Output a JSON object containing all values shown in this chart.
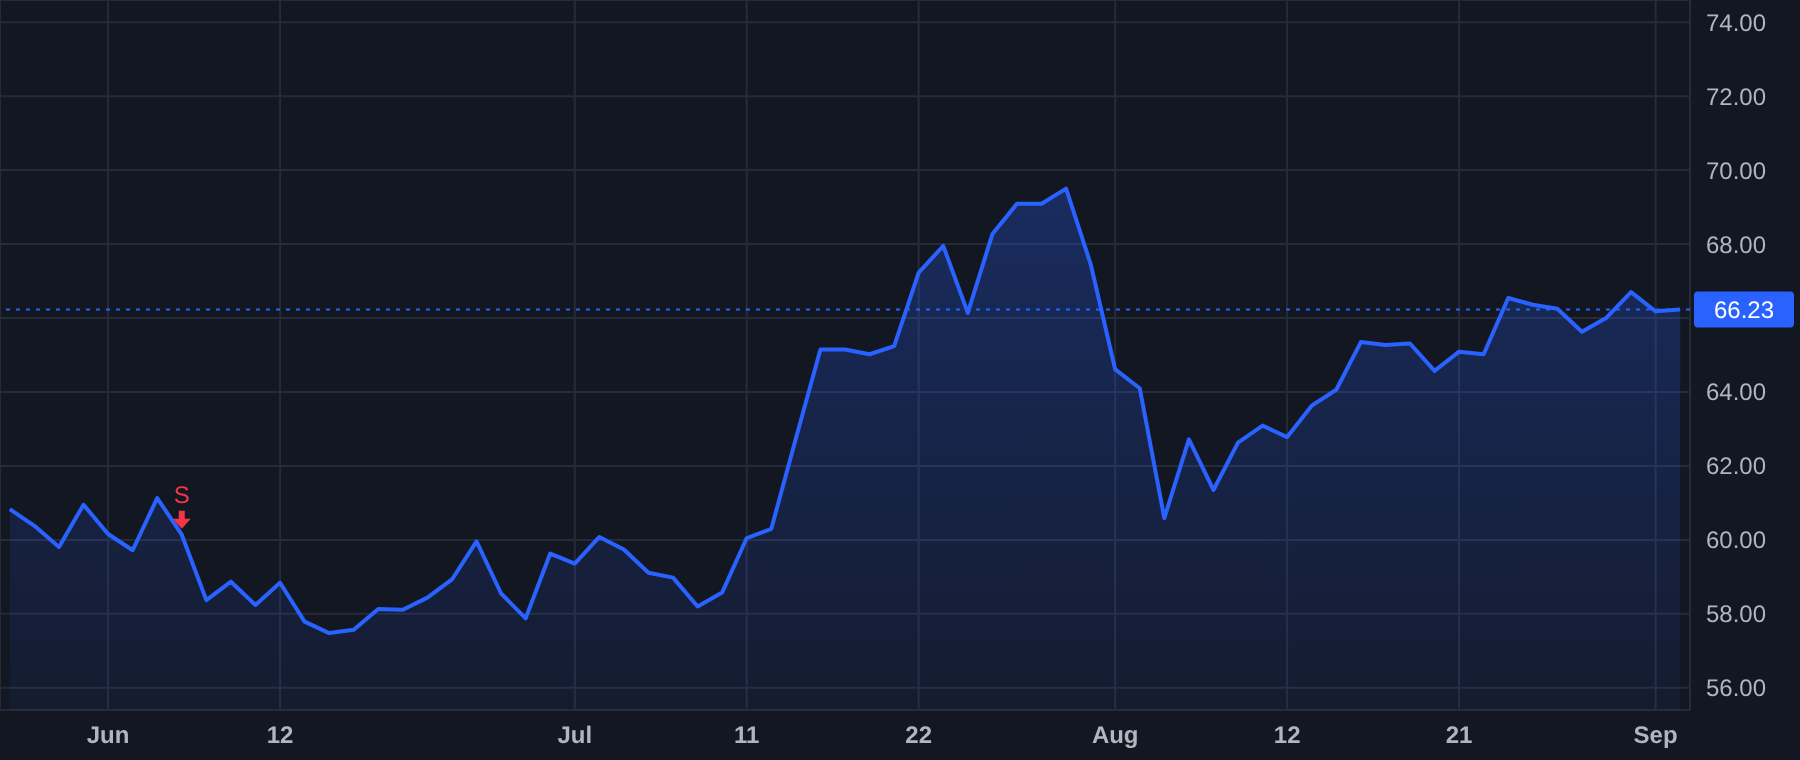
{
  "chart_data": {
    "type": "area",
    "categories": [
      null,
      null,
      null,
      null,
      "Jun",
      null,
      null,
      null,
      null,
      null,
      null,
      "12",
      null,
      null,
      null,
      null,
      null,
      null,
      null,
      null,
      null,
      null,
      null,
      "Jul",
      null,
      null,
      null,
      null,
      null,
      null,
      "11",
      null,
      null,
      null,
      null,
      null,
      null,
      "22",
      null,
      null,
      null,
      null,
      null,
      null,
      null,
      "Aug",
      null,
      null,
      null,
      null,
      null,
      null,
      "12",
      null,
      null,
      null,
      null,
      null,
      null,
      "21",
      null,
      null,
      null,
      null,
      null,
      null,
      null,
      "Sep",
      null
    ],
    "series": [
      {
        "color": "#2962ff",
        "values": [
          60.83,
          60.38,
          59.81,
          60.95,
          60.16,
          59.72,
          61.13,
          60.14,
          58.37,
          58.87,
          58.24,
          58.84,
          57.79,
          57.48,
          57.57,
          58.13,
          58.11,
          58.44,
          58.93,
          59.96,
          58.55,
          57.88,
          59.63,
          59.36,
          60.08,
          59.74,
          59.11,
          58.98,
          58.2,
          58.58,
          60.05,
          60.3,
          62.74,
          65.15,
          65.15,
          65.02,
          65.24,
          67.23,
          67.95,
          66.14,
          68.27,
          69.09,
          69.09,
          69.5,
          67.46,
          64.61,
          64.1,
          60.59,
          62.72,
          61.35,
          62.63,
          63.09,
          62.78,
          63.63,
          64.06,
          65.35,
          65.27,
          65.31,
          64.57,
          65.09,
          65.02,
          66.54,
          66.36,
          66.25,
          65.63,
          66.01,
          66.7,
          66.18,
          66.23
        ]
      }
    ],
    "ylim": [
      55.4,
      74.6
    ],
    "yticks": [
      {
        "value": 56,
        "label": "56.00"
      },
      {
        "value": 58,
        "label": "58.00"
      },
      {
        "value": 60,
        "label": "60.00"
      },
      {
        "value": 62,
        "label": "62.00"
      },
      {
        "value": 64,
        "label": "64.00"
      },
      {
        "value": 66,
        "label": null
      },
      {
        "value": 68,
        "label": "68.00"
      },
      {
        "value": 70,
        "label": "70.00"
      },
      {
        "value": 72,
        "label": "72.00"
      },
      {
        "value": 74,
        "label": "74.00"
      }
    ],
    "ref_lines": [
      {
        "axis": "y",
        "value": 66.23,
        "label": "66.23",
        "color": "#2962ff",
        "line_style": "dotted"
      }
    ],
    "annotations": [
      {
        "text": "S",
        "y": 60.14
      }
    ],
    "grid": true,
    "legend": false
  }
}
